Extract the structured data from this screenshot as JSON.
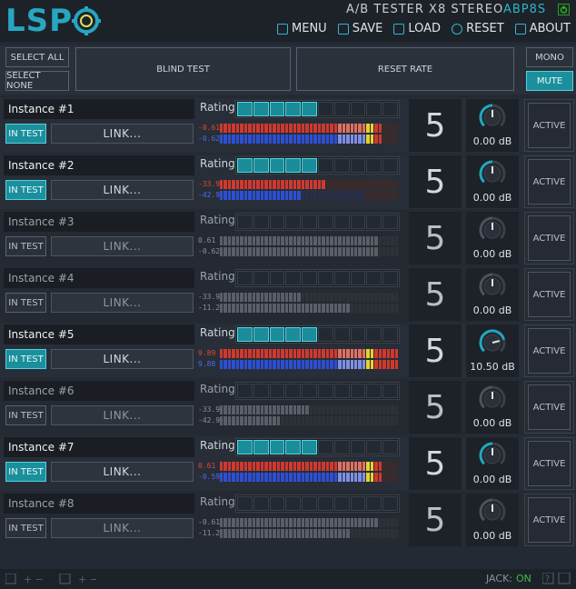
{
  "header": {
    "logo": "LSP",
    "title": "A/B TESTER X8 STEREO",
    "code": "ABP8S",
    "menu": [
      {
        "label": "MENU",
        "icon": "menu-icon"
      },
      {
        "label": "SAVE",
        "icon": "save-icon"
      },
      {
        "label": "LOAD",
        "icon": "load-icon"
      },
      {
        "label": "RESET",
        "icon": "reset-icon"
      },
      {
        "label": "ABOUT",
        "icon": "about-icon"
      }
    ]
  },
  "controls": {
    "select_all": "SELECT ALL",
    "select_none": "SELECT NONE",
    "blind_test": "BLIND TEST",
    "reset_rate": "RESET RATE",
    "mono": "MONO",
    "mute": "MUTE"
  },
  "rows": [
    {
      "name": "Instance #1",
      "in_test": "IN TEST",
      "link": "LINK...",
      "rating_label": "Rating",
      "stars": 5,
      "score": "5",
      "gain": "0.00 dB",
      "gain_fraction": 0.5,
      "active": "ACTIVE",
      "enabled": true,
      "meter_top": "-0.61",
      "meter_bottom": "-0.62",
      "level_top": 0.92,
      "level_bottom": 0.92
    },
    {
      "name": "Instance #2",
      "in_test": "IN TEST",
      "link": "LINK...",
      "rating_label": "Rating",
      "stars": 5,
      "score": "5",
      "gain": "0.00 dB",
      "gain_fraction": 0.5,
      "active": "ACTIVE",
      "enabled": true,
      "meter_top": "-33.9",
      "meter_bottom": "-42.9",
      "level_top": 0.6,
      "level_bottom": 0.45
    },
    {
      "name": "Instance #3",
      "in_test": "IN TEST",
      "link": "LINK...",
      "rating_label": "Rating",
      "stars": 0,
      "score": "5",
      "gain": "0.00 dB",
      "gain_fraction": 0.5,
      "active": "ACTIVE",
      "enabled": false,
      "meter_top": "0.61",
      "meter_bottom": "-0.62",
      "level_top": 0.88,
      "level_bottom": 0.88
    },
    {
      "name": "Instance #4",
      "in_test": "IN TEST",
      "link": "LINK...",
      "rating_label": "Rating",
      "stars": 0,
      "score": "5",
      "gain": "0.00 dB",
      "gain_fraction": 0.5,
      "active": "ACTIVE",
      "enabled": false,
      "meter_top": "-33.9",
      "meter_bottom": "-11.2",
      "level_top": 0.46,
      "level_bottom": 0.73
    },
    {
      "name": "Instance #5",
      "in_test": "IN TEST",
      "link": "LINK...",
      "rating_label": "Rating",
      "stars": 5,
      "score": "5",
      "gain": "10.50 dB",
      "gain_fraction": 0.78,
      "active": "ACTIVE",
      "enabled": true,
      "meter_top": "9.89",
      "meter_bottom": "9.88",
      "level_top": 1.0,
      "level_bottom": 1.0
    },
    {
      "name": "Instance #6",
      "in_test": "IN TEST",
      "link": "LINK...",
      "rating_label": "Rating",
      "stars": 0,
      "score": "5",
      "gain": "0.00 dB",
      "gain_fraction": 0.5,
      "active": "ACTIVE",
      "enabled": false,
      "meter_top": "-33.9",
      "meter_bottom": "-42.9",
      "level_top": 0.5,
      "level_bottom": 0.35
    },
    {
      "name": "Instance #7",
      "in_test": "IN TEST",
      "link": "LINK...",
      "rating_label": "Rating",
      "stars": 5,
      "score": "5",
      "gain": "0.00 dB",
      "gain_fraction": 0.5,
      "active": "ACTIVE",
      "enabled": true,
      "meter_top": "0.61",
      "meter_bottom": "-0.59",
      "level_top": 0.92,
      "level_bottom": 0.92
    },
    {
      "name": "Instance #8",
      "in_test": "IN TEST",
      "link": "LINK...",
      "rating_label": "Rating",
      "stars": 0,
      "score": "5",
      "gain": "0.00 dB",
      "gain_fraction": 0.5,
      "active": "ACTIVE",
      "enabled": false,
      "meter_top": "-0.61",
      "meter_bottom": "-11.2",
      "level_top": 0.88,
      "level_bottom": 0.73
    }
  ],
  "footer": {
    "jack_label": "JACK:",
    "jack_status": "ON"
  },
  "colors": {
    "accent": "#26a6c2",
    "meter_red": "#d2382d",
    "meter_blue": "#2c4fd6",
    "meter_yellow": "#e6d32a"
  }
}
